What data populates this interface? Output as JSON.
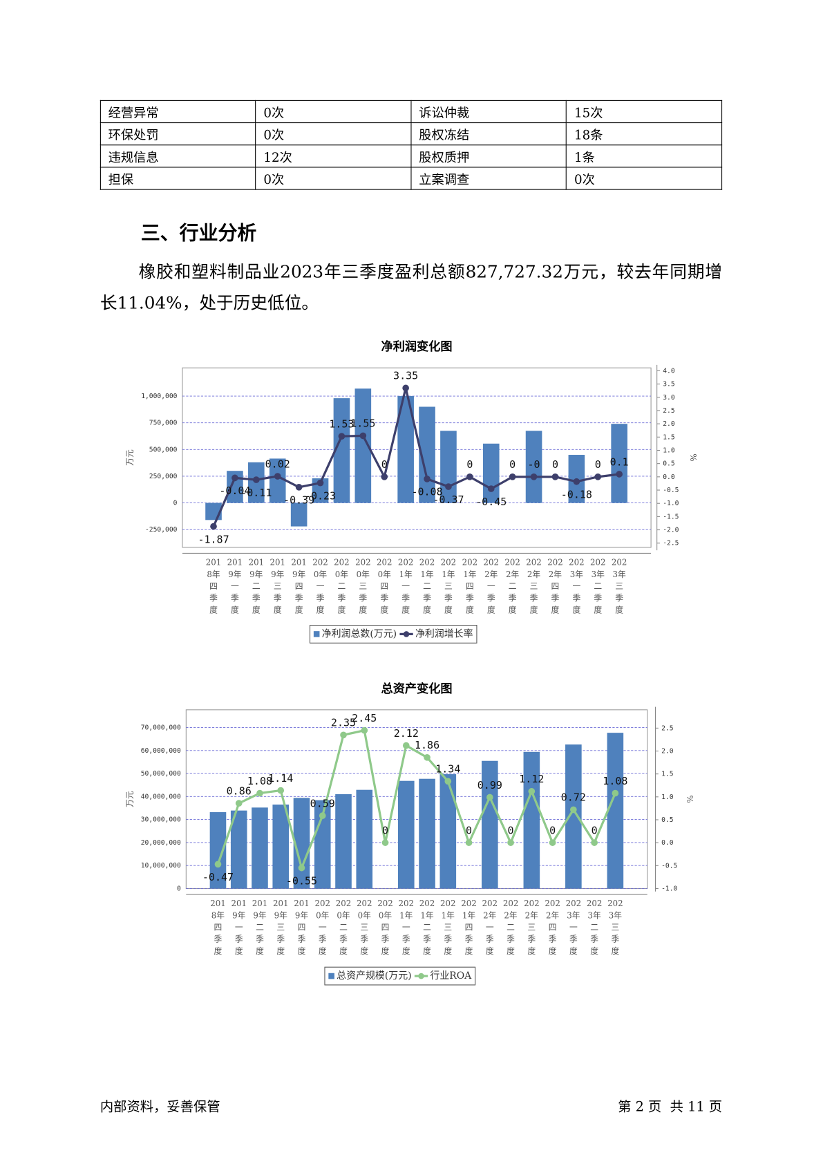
{
  "table": {
    "rows": [
      [
        "经营异常",
        "0次",
        "诉讼仲裁",
        "15次"
      ],
      [
        "环保处罚",
        "0次",
        "股权冻结",
        "18条"
      ],
      [
        "违规信息",
        "12次",
        "股权质押",
        "1条"
      ],
      [
        "担保",
        "0次",
        "立案调查",
        "0次"
      ]
    ]
  },
  "heading": "三、行业分析",
  "paragraph": "橡胶和塑料制品业2023年三季度盈利总额827,727.32万元，较去年同期增长11.04%，处于历史低位。",
  "chart_data": [
    {
      "type": "bar_line",
      "title": "净利润变化图",
      "y_label": "万元",
      "y2_label": "%",
      "categories": [
        "2018年四季度",
        "2019年一季度",
        "2019年二季度",
        "2019年三季度",
        "2019年四季度",
        "2020年一季度",
        "2020年二季度",
        "2020年三季度",
        "2020年四季度",
        "2021年一季度",
        "2021年二季度",
        "2021年三季度",
        "2021年四季度",
        "2022年一季度",
        "2022年二季度",
        "2022年三季度",
        "2022年四季度",
        "2023年一季度",
        "2023年二季度",
        "2023年三季度"
      ],
      "series": [
        {
          "name": "净利润总数(万元)",
          "type": "bar",
          "color": "#4f81bd",
          "values": [
            -160000,
            300000,
            380000,
            415000,
            -220000,
            230000,
            980000,
            1070000,
            null,
            1000000,
            900000,
            675000,
            null,
            555000,
            null,
            675000,
            null,
            450000,
            null,
            740000
          ]
        },
        {
          "name": "净利润增长率",
          "type": "line",
          "axis": "y2",
          "color": "#3d3f6b",
          "values": [
            -1.87,
            -0.04,
            -0.11,
            0.02,
            -0.39,
            -0.23,
            1.53,
            1.55,
            0,
            3.35,
            -0.08,
            -0.37,
            0,
            -0.45,
            0,
            0,
            0,
            -0.18,
            0,
            0.1
          ],
          "value_labels": [
            "-1.87",
            "-0.04",
            "-0.11",
            "0.02",
            "-0.39",
            "-0.23",
            "1.53",
            "1.55",
            "0",
            "3.35",
            "-0.08",
            "-0.37",
            "0",
            "-0.45",
            "0",
            "-0",
            "0",
            "-0.18",
            "0",
            "0.1"
          ]
        }
      ],
      "ylim": [
        -416000,
        1264000
      ],
      "yticks": [
        {
          "value": -250000,
          "label": "-250,000"
        },
        0,
        {
          "value": 250000,
          "label": "250,000"
        },
        {
          "value": 500000,
          "label": "500,000"
        },
        {
          "value": 750000,
          "label": "750,000"
        },
        {
          "value": 1000000,
          "label": "1,000,000"
        }
      ],
      "y2lim": [
        -2.66,
        4.11
      ],
      "y2ticks": [
        {
          "value": -2.5,
          "label": "-2.5"
        },
        {
          "value": -2,
          "label": "-2.0"
        },
        {
          "value": -1.5,
          "label": "-1.5"
        },
        {
          "value": -1,
          "label": "-1.0"
        },
        {
          "value": -0.5,
          "label": "-0.5"
        },
        {
          "value": 0,
          "label": "0.0"
        },
        {
          "value": 0.5,
          "label": "0.5"
        },
        {
          "value": 1,
          "label": "1.0"
        },
        {
          "value": 1.5,
          "label": "1.5"
        },
        {
          "value": 2,
          "label": "2.0"
        },
        {
          "value": 2.5,
          "label": "2.5"
        },
        {
          "value": 3,
          "label": "3.0"
        },
        {
          "value": 3.5,
          "label": "3.5"
        },
        {
          "value": 4,
          "label": "4.0"
        }
      ],
      "grid": true
    },
    {
      "type": "bar_line",
      "title": "总资产变化图",
      "y_label": "万元",
      "y2_label": "%",
      "categories": [
        "2018年四季度",
        "2019年一季度",
        "2019年二季度",
        "2019年三季度",
        "2019年四季度",
        "2020年一季度",
        "2020年二季度",
        "2020年三季度",
        "2020年四季度",
        "2021年一季度",
        "2021年二季度",
        "2021年三季度",
        "2021年四季度",
        "2022年一季度",
        "2022年二季度",
        "2022年三季度",
        "2022年四季度",
        "2023年一季度",
        "2023年二季度",
        "2023年三季度"
      ],
      "series": [
        {
          "name": "总资产规模(万元)",
          "type": "bar",
          "color": "#4f81bd",
          "values": [
            33200000,
            33900000,
            35200000,
            36500000,
            39400000,
            38400000,
            41000000,
            42900000,
            null,
            46800000,
            47700000,
            49700000,
            null,
            55500000,
            null,
            59400000,
            null,
            62600000,
            null,
            67700000
          ]
        },
        {
          "name": "行业ROA",
          "type": "line",
          "axis": "y2",
          "color": "#8fc98a",
          "values": [
            -0.47,
            0.86,
            1.08,
            1.14,
            -0.55,
            0.59,
            2.35,
            2.45,
            0,
            2.12,
            1.86,
            1.34,
            0,
            0.99,
            0,
            1.12,
            0,
            0.72,
            0,
            1.08
          ]
        }
      ],
      "ylim": [
        0,
        77700000
      ],
      "yticks": [
        0,
        {
          "value": 10000000,
          "label": "10,000,000"
        },
        {
          "value": 20000000,
          "label": "20,000,000"
        },
        {
          "value": 30000000,
          "label": "30,000,000"
        },
        {
          "value": 40000000,
          "label": "40,000,000"
        },
        {
          "value": 50000000,
          "label": "50,000,000"
        },
        {
          "value": 60000000,
          "label": "60,000,000"
        },
        {
          "value": 70000000,
          "label": "70,000,000"
        }
      ],
      "y2lim": [
        -1,
        2.9
      ],
      "y2ticks": [
        {
          "value": -1,
          "label": "-1.0"
        },
        {
          "value": -0.5,
          "label": "-0.5"
        },
        {
          "value": 0,
          "label": "0.0"
        },
        {
          "value": 0.5,
          "label": "0.5"
        },
        {
          "value": 1,
          "label": "1.0"
        },
        {
          "value": 1.5,
          "label": "1.5"
        },
        {
          "value": 2,
          "label": "2.0"
        },
        {
          "value": 2.5,
          "label": "2.5"
        }
      ],
      "grid": true
    }
  ],
  "footer": {
    "left": "内部资料，妥善保管",
    "right": "第 2 页  共 11 页"
  }
}
